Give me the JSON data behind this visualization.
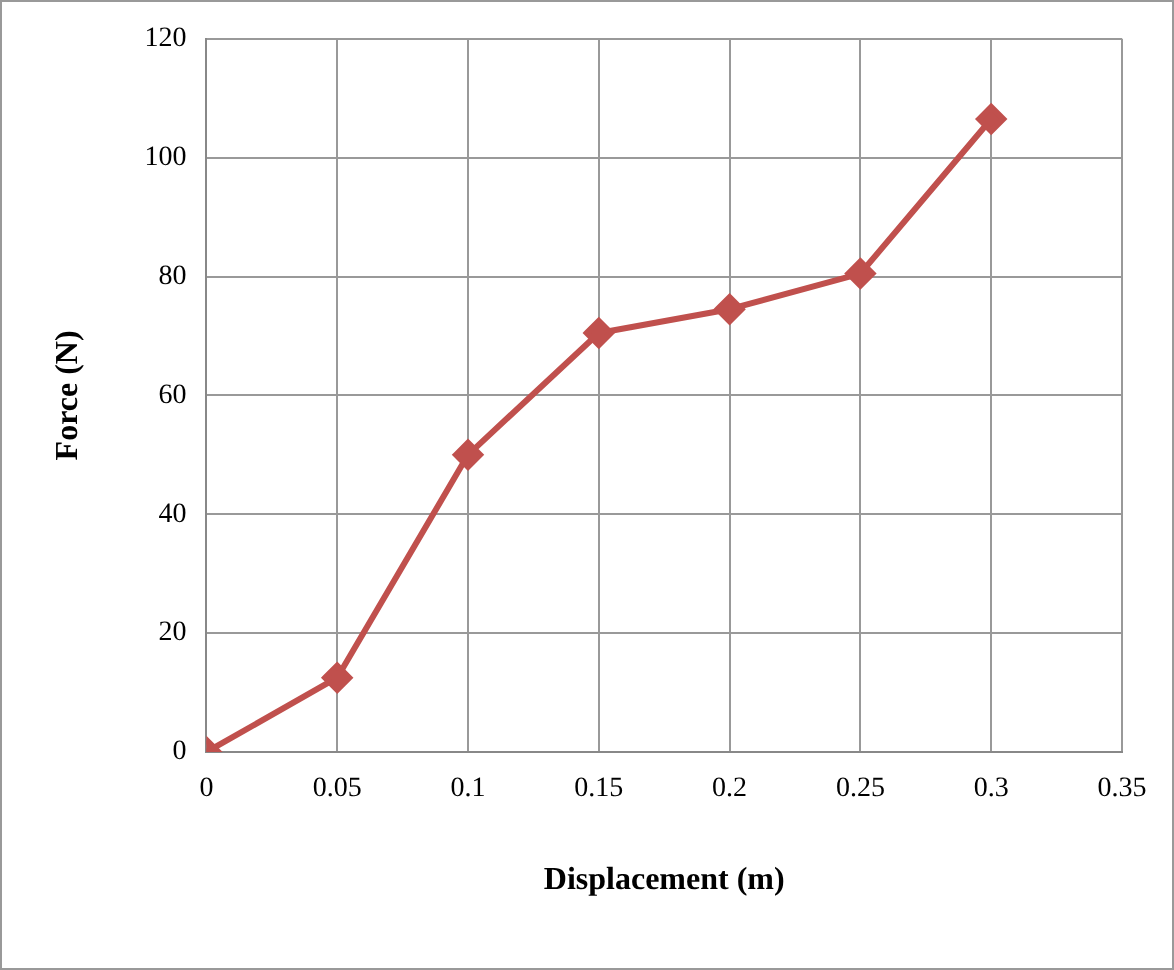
{
  "chart_data": {
    "type": "line",
    "xlabel": "Displacement (m)",
    "ylabel": "Force (N)",
    "x": [
      0,
      0.05,
      0.1,
      0.15,
      0.2,
      0.25,
      0.3
    ],
    "series": [
      {
        "color": "#c0504d",
        "values": [
          0,
          12.5,
          50,
          70.5,
          74.5,
          80.5,
          106.5
        ]
      }
    ],
    "xlim": [
      0,
      0.35
    ],
    "xticks": [
      0,
      0.05,
      0.1,
      0.15,
      0.2,
      0.25,
      0.3,
      0.35
    ],
    "ylim": [
      0,
      120
    ],
    "yticks": [
      0,
      20,
      40,
      60,
      80,
      100,
      120
    ],
    "grid": true,
    "marker": "diamond",
    "line_style": "solid",
    "legend": false
  }
}
